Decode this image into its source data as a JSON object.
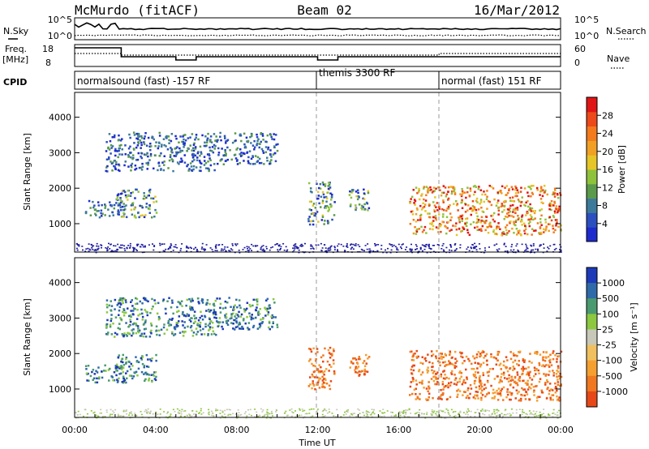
{
  "header": {
    "station": "McMurdo (fitACF)",
    "beam": "Beam 02",
    "date": "16/Mar/2012"
  },
  "side_labels": {
    "nsky": "N.Sky",
    "freq_line1": "Freq.",
    "freq_line2": "[MHz]",
    "cpid": "CPID",
    "nsearch": "N.Search",
    "nave": "Nave"
  },
  "nsky_panel": {
    "left_ticks": [
      "10^5",
      "10^0"
    ],
    "right_ticks": [
      "10^5",
      "10^0"
    ]
  },
  "freq_panel": {
    "left_ticks": [
      "18",
      "8"
    ],
    "right_ticks": [
      "60",
      "0"
    ]
  },
  "cpid_modes": [
    {
      "text": "normalsound (fast) -157 RF",
      "start_hour": 0
    },
    {
      "text": "themis 3300 RF",
      "start_hour": 12
    },
    {
      "text": "normal (fast) 151 RF",
      "start_hour": 18
    }
  ],
  "colors": {
    "power": [
      "#1d2bcc",
      "#2c4fbf",
      "#3d7a9a",
      "#5a9a4a",
      "#8fc23b",
      "#e6c528",
      "#f0a024",
      "#f47a1e",
      "#ec4a1a",
      "#e01515"
    ],
    "velocity_pos": [
      "#1d3ab8",
      "#2f6aa8",
      "#4a9a70",
      "#8cc840",
      "#c8c8b8"
    ],
    "velocity_neg": [
      "#f0c060",
      "#f4a030",
      "#f07820",
      "#e84818"
    ],
    "noise": "#1a1aa0"
  },
  "chart_data": [
    {
      "type": "heatmap",
      "title": "Power",
      "xlabel": "",
      "ylabel": "Slant Range [km]",
      "xlim": [
        0,
        24
      ],
      "ylim": [
        200,
        4700
      ],
      "y_ticks": [
        "1000",
        "2000",
        "3000",
        "4000"
      ],
      "colorbar": {
        "label": "Power [dB]",
        "ticks": [
          "4",
          "8",
          "12",
          "16",
          "20",
          "24",
          "28"
        ],
        "range": [
          0,
          32
        ]
      },
      "mode_boundaries_hours": [
        12,
        18
      ],
      "echo_regions": [
        {
          "t0": 0.5,
          "t1": 2.5,
          "r0": 1200,
          "r1": 1700,
          "level": "low"
        },
        {
          "t0": 1.5,
          "t1": 7.0,
          "r0": 2500,
          "r1": 3600,
          "level": "low"
        },
        {
          "t0": 2.0,
          "t1": 4.0,
          "r0": 1200,
          "r1": 2000,
          "level": "mid"
        },
        {
          "t0": 7.0,
          "t1": 10.0,
          "r0": 2700,
          "r1": 3600,
          "level": "low"
        },
        {
          "t0": 11.5,
          "t1": 12.8,
          "r0": 1000,
          "r1": 2200,
          "level": "mid"
        },
        {
          "t0": 13.5,
          "t1": 14.5,
          "r0": 1400,
          "r1": 2000,
          "level": "mid"
        },
        {
          "t0": 16.5,
          "t1": 24.0,
          "r0": 700,
          "r1": 2100,
          "level": "high"
        }
      ]
    },
    {
      "type": "heatmap",
      "title": "Velocity",
      "xlabel": "Time UT",
      "ylabel": "Slant Range [km]",
      "xlim": [
        0,
        24
      ],
      "ylim": [
        200,
        4700
      ],
      "x_ticks": [
        "00:00",
        "04:00",
        "08:00",
        "12:00",
        "16:00",
        "20:00",
        "00:00"
      ],
      "y_ticks": [
        "1000",
        "2000",
        "3000",
        "4000"
      ],
      "colorbar": {
        "label": "Velocity [m s⁻¹]",
        "ticks": [
          "1000",
          "500",
          "100",
          "25",
          "-25",
          "-100",
          "-500",
          "-1000"
        ]
      },
      "echo_regions": [
        {
          "t0": 0.5,
          "t1": 2.5,
          "r0": 1200,
          "r1": 1700,
          "level": "toward"
        },
        {
          "t0": 1.5,
          "t1": 7.0,
          "r0": 2500,
          "r1": 3600,
          "level": "toward"
        },
        {
          "t0": 2.0,
          "t1": 4.0,
          "r0": 1200,
          "r1": 2000,
          "level": "toward"
        },
        {
          "t0": 7.0,
          "t1": 10.0,
          "r0": 2700,
          "r1": 3600,
          "level": "toward"
        },
        {
          "t0": 11.5,
          "t1": 12.8,
          "r0": 1000,
          "r1": 2200,
          "level": "away"
        },
        {
          "t0": 13.5,
          "t1": 14.5,
          "r0": 1400,
          "r1": 2000,
          "level": "away"
        },
        {
          "t0": 16.5,
          "t1": 24.0,
          "r0": 700,
          "r1": 2100,
          "level": "away"
        }
      ]
    }
  ]
}
